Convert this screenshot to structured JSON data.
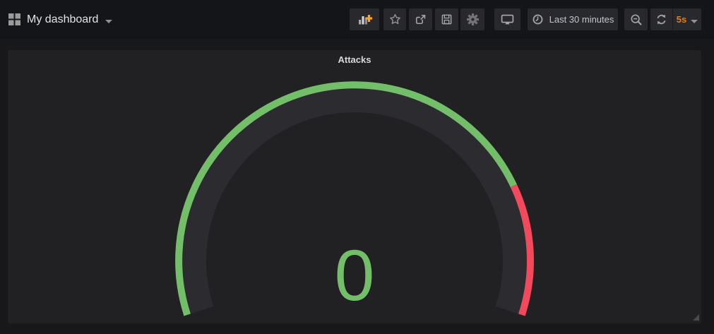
{
  "navbar": {
    "dashboard_title": "My dashboard",
    "time_range_label": "Last 30 minutes",
    "refresh_interval_label": "5s",
    "accent_orange": "#eb7b18"
  },
  "panel": {
    "title": "Attacks"
  },
  "chart_data": {
    "type": "gauge",
    "title": "Attacks",
    "value": 0,
    "display_value": "0",
    "min": 0,
    "max": 100,
    "thresholds": [
      80
    ],
    "segment_colors": [
      "#73bf69",
      "#f2495c"
    ],
    "value_color": "#73bf69",
    "gauge_body_color": "#2c2c30",
    "legend_position": "none",
    "grid": false
  },
  "icons": {
    "logo": "grid-icon",
    "toolbar": [
      "add-panel-icon",
      "star-icon",
      "share-icon",
      "save-icon",
      "gear-icon",
      "tv-icon"
    ],
    "time_controls": [
      "clock-icon",
      "zoom-out-icon",
      "refresh-icon",
      "caret-down-icon"
    ]
  }
}
